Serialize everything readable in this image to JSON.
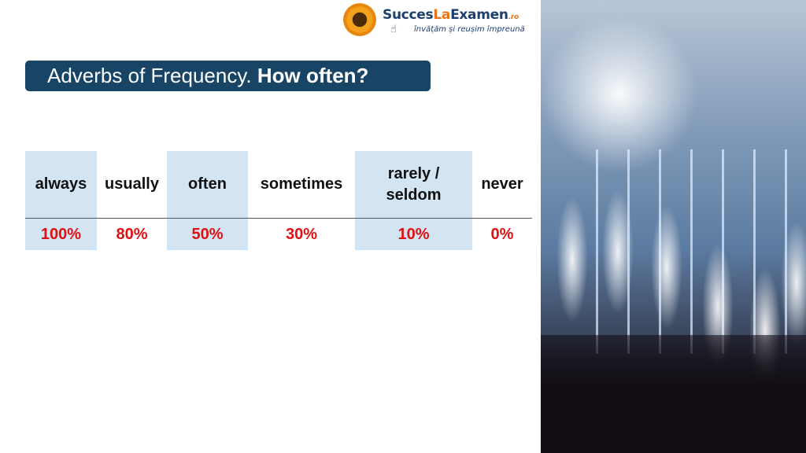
{
  "logo": {
    "brand_a": "Succes",
    "brand_b": "La",
    "brand_c": "Examen",
    "brand_tld": ".ro",
    "tagline": "învățăm și reușim împreună"
  },
  "title": {
    "normal": "Adverbs of Frequency.",
    "bold": "How often?"
  },
  "table": {
    "columns": [
      {
        "adverb": "always",
        "percent": "100%"
      },
      {
        "adverb": "usually",
        "percent": "80%"
      },
      {
        "adverb": "often",
        "percent": "50%"
      },
      {
        "adverb": "sometimes",
        "percent": "30%"
      },
      {
        "adverb": "rarely / seldom",
        "percent": "10%"
      },
      {
        "adverb": "never",
        "percent": "0%"
      }
    ]
  },
  "colors": {
    "title_bg": "#184466",
    "shade": "#d3e5f3",
    "percent": "#e01010"
  },
  "photo": {
    "icon": "concert-crowd-image"
  }
}
